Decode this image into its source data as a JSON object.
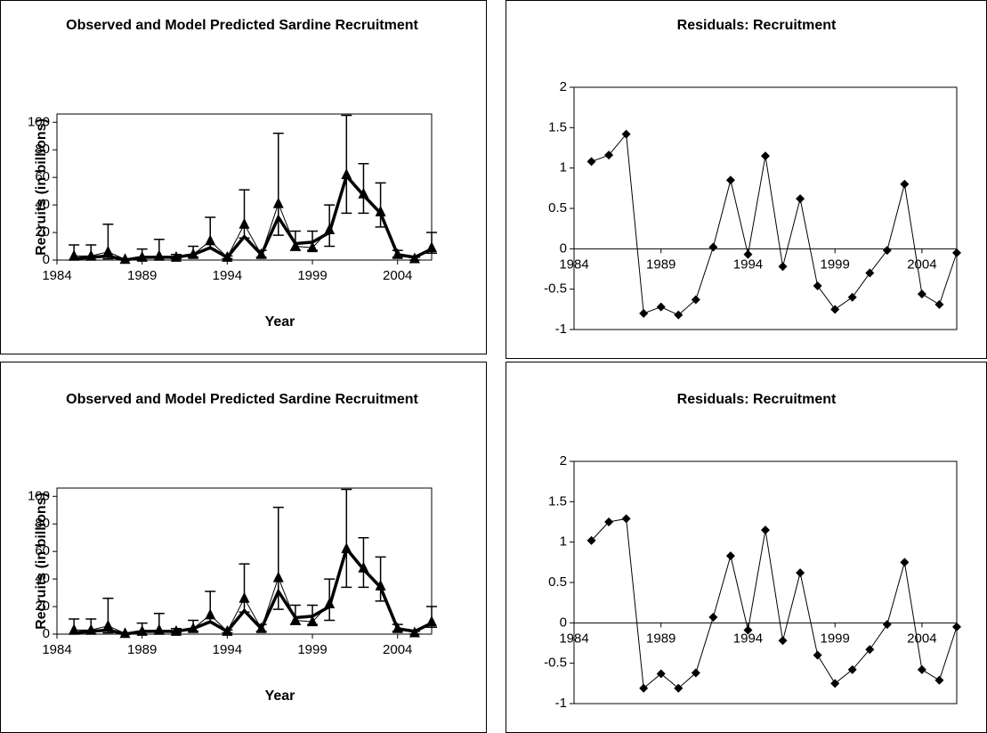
{
  "chart_data": [
    {
      "type": "line",
      "title": "Observed and Model Predicted Sardine Recruitment",
      "x_label": "Year",
      "y_label": "Recruits (in billions)",
      "x": [
        1985,
        1986,
        1987,
        1988,
        1989,
        1990,
        1991,
        1992,
        1993,
        1994,
        1995,
        1996,
        1997,
        1998,
        1999,
        2000,
        2001,
        2002,
        2003,
        2004,
        2005,
        2006
      ],
      "xlim": [
        1984,
        2006
      ],
      "xticks": [
        1984,
        1989,
        1994,
        1999,
        2004
      ],
      "ylim": [
        0,
        106
      ],
      "yticks": [
        0,
        20,
        40,
        60,
        80,
        100
      ],
      "series": [
        {
          "color": "#000000",
          "marker": "none",
          "values": [
            1,
            2,
            3,
            0,
            2,
            2,
            2,
            4,
            9,
            2,
            17,
            4,
            31,
            12,
            13,
            20,
            61,
            47,
            34,
            4,
            2,
            8
          ]
        },
        {
          "color": "#000000",
          "marker": "triangle",
          "values": [
            3,
            3,
            6,
            0.5,
            2,
            3,
            2,
            4,
            14,
            2,
            26,
            4,
            41,
            10,
            9,
            22,
            62,
            48,
            35,
            4,
            1,
            9
          ],
          "low": [
            0,
            0,
            1,
            0,
            0,
            0,
            1,
            2,
            8,
            1,
            16,
            2,
            18,
            7,
            7,
            10,
            34,
            34,
            24,
            2,
            0,
            5
          ],
          "high": [
            11,
            11,
            26,
            1,
            8,
            15,
            4,
            10,
            31,
            3,
            51,
            7,
            92,
            21,
            21,
            40,
            105,
            70,
            56,
            7,
            2,
            20
          ]
        }
      ]
    },
    {
      "type": "line",
      "title": "Residuals: Recruitment",
      "x": [
        1985,
        1986,
        1987,
        1988,
        1989,
        1990,
        1991,
        1992,
        1993,
        1994,
        1995,
        1996,
        1997,
        1998,
        1999,
        2000,
        2001,
        2002,
        2003,
        2004,
        2005,
        2006
      ],
      "xlim": [
        1984,
        2006
      ],
      "xticks": [
        1984,
        1989,
        1994,
        1999,
        2004
      ],
      "x_axis_crosses": 0,
      "ylim": [
        -1,
        2
      ],
      "yticks": [
        -1,
        -0.5,
        0,
        0.5,
        1,
        1.5,
        2
      ],
      "series": [
        {
          "color": "#000000",
          "marker": "diamond",
          "values": [
            1.08,
            1.16,
            1.42,
            -0.8,
            -0.72,
            -0.82,
            -0.63,
            0.02,
            0.85,
            -0.07,
            1.15,
            -0.22,
            0.62,
            -0.46,
            -0.75,
            -0.6,
            -0.3,
            -0.02,
            0.8,
            -0.56,
            -0.69,
            -0.05
          ]
        }
      ]
    },
    {
      "type": "line",
      "title": "Observed and Model Predicted Sardine Recruitment",
      "x_label": "Year",
      "y_label": "Recruits (in billions)",
      "x": [
        1985,
        1986,
        1987,
        1988,
        1989,
        1990,
        1991,
        1992,
        1993,
        1994,
        1995,
        1996,
        1997,
        1998,
        1999,
        2000,
        2001,
        2002,
        2003,
        2004,
        2005,
        2006
      ],
      "xlim": [
        1984,
        2006
      ],
      "xticks": [
        1984,
        1989,
        1994,
        1999,
        2004
      ],
      "ylim": [
        0,
        106
      ],
      "yticks": [
        0,
        20,
        40,
        60,
        80,
        100
      ],
      "series": [
        {
          "color": "#000000",
          "marker": "none",
          "values": [
            1,
            2,
            3,
            0,
            2,
            2,
            2,
            4,
            9,
            2,
            17,
            4,
            31,
            12,
            13,
            20,
            62,
            47,
            34,
            4,
            2,
            8
          ]
        },
        {
          "color": "#000000",
          "marker": "triangle",
          "values": [
            3,
            3,
            6,
            0.5,
            2,
            3,
            2,
            4,
            14,
            2,
            26,
            4,
            41,
            10,
            9,
            22,
            62,
            48,
            35,
            4,
            1,
            9
          ],
          "low": [
            0,
            0,
            1,
            0,
            0,
            0,
            1,
            2,
            8,
            1,
            16,
            2,
            18,
            7,
            7,
            10,
            34,
            34,
            24,
            2,
            0,
            5
          ],
          "high": [
            11,
            11,
            26,
            1,
            8,
            15,
            4,
            10,
            31,
            3,
            51,
            7,
            92,
            21,
            21,
            40,
            105,
            70,
            56,
            7,
            2,
            20
          ]
        }
      ]
    },
    {
      "type": "line",
      "title": "Residuals: Recruitment",
      "x": [
        1985,
        1986,
        1987,
        1988,
        1989,
        1990,
        1991,
        1992,
        1993,
        1994,
        1995,
        1996,
        1997,
        1998,
        1999,
        2000,
        2001,
        2002,
        2003,
        2004,
        2005,
        2006
      ],
      "xlim": [
        1984,
        2006
      ],
      "xticks": [
        1984,
        1989,
        1994,
        1999,
        2004
      ],
      "x_axis_crosses": 0,
      "ylim": [
        -1,
        2
      ],
      "yticks": [
        -1,
        -0.5,
        0,
        0.5,
        1,
        1.5,
        2
      ],
      "series": [
        {
          "color": "#000000",
          "marker": "diamond",
          "values": [
            1.02,
            1.25,
            1.29,
            -0.81,
            -0.63,
            -0.81,
            -0.62,
            0.07,
            0.83,
            -0.09,
            1.15,
            -0.22,
            0.62,
            -0.4,
            -0.75,
            -0.58,
            -0.33,
            -0.02,
            0.75,
            -0.58,
            -0.71,
            -0.05
          ]
        }
      ]
    }
  ]
}
